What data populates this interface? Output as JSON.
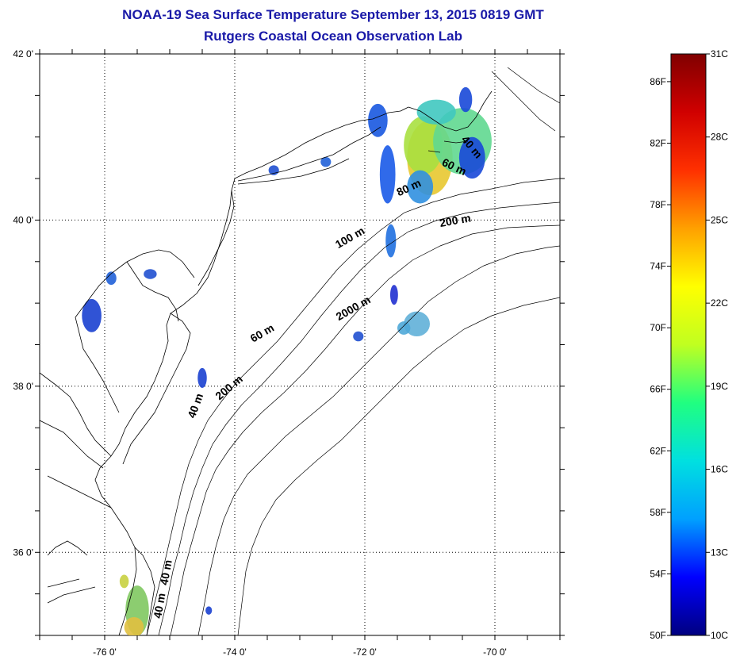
{
  "header": {
    "title": "NOAA-19 Sea Surface Temperature September 13, 2015 0819 GMT",
    "subtitle": "Rutgers Coastal Ocean Observation Lab"
  },
  "map": {
    "lon_range": [
      -77,
      -69
    ],
    "lat_range": [
      35,
      42
    ],
    "x_ticks": [
      {
        "lon": -76,
        "label": "-76 0'"
      },
      {
        "lon": -74,
        "label": "-74 0'"
      },
      {
        "lon": -72,
        "label": "-72 0'"
      },
      {
        "lon": -70,
        "label": "-70 0'"
      }
    ],
    "y_ticks": [
      {
        "lat": 42,
        "label": "42 0'"
      },
      {
        "lat": 40,
        "label": "40 0'"
      },
      {
        "lat": 38,
        "label": "38 0'"
      },
      {
        "lat": 36,
        "label": "36 0'"
      }
    ],
    "gridlines": "dotted",
    "isobath_labels": [
      {
        "text": "40 m",
        "lon": -70.4,
        "lat": 40.85,
        "angle": 50
      },
      {
        "text": "60 m",
        "lon": -70.65,
        "lat": 40.6,
        "angle": 25
      },
      {
        "text": "80 m",
        "lon": -71.3,
        "lat": 40.35,
        "angle": -25
      },
      {
        "text": "200 m",
        "lon": -70.6,
        "lat": 39.95,
        "angle": -10
      },
      {
        "text": "100 m",
        "lon": -72.2,
        "lat": 39.75,
        "angle": -30
      },
      {
        "text": "2000 m",
        "lon": -72.15,
        "lat": 38.9,
        "angle": -30
      },
      {
        "text": "60 m",
        "lon": -73.55,
        "lat": 38.6,
        "angle": -30
      },
      {
        "text": "200 m",
        "lon": -74.05,
        "lat": 37.95,
        "angle": -40
      },
      {
        "text": "40 m",
        "lon": -74.55,
        "lat": 37.75,
        "angle": -70
      },
      {
        "text": "40 m",
        "lon": -75.0,
        "lat": 35.75,
        "angle": -80
      },
      {
        "text": "40 m",
        "lon": -75.1,
        "lat": 35.35,
        "angle": -80
      }
    ],
    "sst_patches": [
      {
        "lon": -71.0,
        "lat": 40.75,
        "rx": 0.35,
        "ry": 0.45,
        "color": "#e8c830"
      },
      {
        "lon": -71.1,
        "lat": 40.9,
        "rx": 0.3,
        "ry": 0.35,
        "color": "#a8e040"
      },
      {
        "lon": -70.5,
        "lat": 40.95,
        "rx": 0.45,
        "ry": 0.4,
        "color": "#60d890"
      },
      {
        "lon": -70.35,
        "lat": 40.75,
        "rx": 0.2,
        "ry": 0.25,
        "color": "#1848d8"
      },
      {
        "lon": -70.9,
        "lat": 41.3,
        "rx": 0.3,
        "ry": 0.15,
        "color": "#40c8c0"
      },
      {
        "lon": -70.45,
        "lat": 41.45,
        "rx": 0.1,
        "ry": 0.15,
        "color": "#1848d8"
      },
      {
        "lon": -71.8,
        "lat": 41.2,
        "rx": 0.15,
        "ry": 0.2,
        "color": "#1858e0"
      },
      {
        "lon": -71.65,
        "lat": 40.55,
        "rx": 0.12,
        "ry": 0.35,
        "color": "#1a5ae8"
      },
      {
        "lon": -71.15,
        "lat": 40.4,
        "rx": 0.2,
        "ry": 0.2,
        "color": "#3090e0"
      },
      {
        "lon": -71.6,
        "lat": 39.75,
        "rx": 0.08,
        "ry": 0.2,
        "color": "#2070e0"
      },
      {
        "lon": -71.55,
        "lat": 39.1,
        "rx": 0.06,
        "ry": 0.12,
        "color": "#2030d0"
      },
      {
        "lon": -71.2,
        "lat": 38.75,
        "rx": 0.2,
        "ry": 0.15,
        "color": "#60b0d8"
      },
      {
        "lon": -71.4,
        "lat": 38.7,
        "rx": 0.1,
        "ry": 0.08,
        "color": "#4fa8d8"
      },
      {
        "lon": -72.1,
        "lat": 38.6,
        "rx": 0.08,
        "ry": 0.06,
        "color": "#2050d0"
      },
      {
        "lon": -76.2,
        "lat": 38.85,
        "rx": 0.15,
        "ry": 0.2,
        "color": "#1a40d0"
      },
      {
        "lon": -75.9,
        "lat": 39.3,
        "rx": 0.08,
        "ry": 0.08,
        "color": "#2060d8"
      },
      {
        "lon": -75.3,
        "lat": 39.35,
        "rx": 0.1,
        "ry": 0.06,
        "color": "#2050d0"
      },
      {
        "lon": -74.5,
        "lat": 38.1,
        "rx": 0.07,
        "ry": 0.12,
        "color": "#1a40d0"
      },
      {
        "lon": -75.5,
        "lat": 35.3,
        "rx": 0.18,
        "ry": 0.3,
        "color": "#80c860"
      },
      {
        "lon": -75.55,
        "lat": 35.1,
        "rx": 0.15,
        "ry": 0.12,
        "color": "#e0c040"
      },
      {
        "lon": -75.7,
        "lat": 35.65,
        "rx": 0.07,
        "ry": 0.08,
        "color": "#c8d040"
      },
      {
        "lon": -74.4,
        "lat": 35.3,
        "rx": 0.05,
        "ry": 0.05,
        "color": "#1a40d0"
      },
      {
        "lon": -73.4,
        "lat": 40.6,
        "rx": 0.08,
        "ry": 0.06,
        "color": "#2050d0"
      },
      {
        "lon": -72.6,
        "lat": 40.7,
        "rx": 0.08,
        "ry": 0.06,
        "color": "#2060d8"
      }
    ]
  },
  "colorbar": {
    "range_c": [
      10,
      31
    ],
    "colors": [
      "#000080",
      "#0000ff",
      "#00a0ff",
      "#00e0e0",
      "#20ff80",
      "#c0ff20",
      "#ffff00",
      "#ffa000",
      "#ff3000",
      "#d00000",
      "#800000"
    ],
    "celsius_labels": [
      "31C",
      "28C",
      "25C",
      "22C",
      "19C",
      "16C",
      "13C",
      "10C"
    ],
    "celsius_values": [
      31,
      28,
      25,
      22,
      19,
      16,
      13,
      10
    ],
    "fahrenheit_labels": [
      "86F",
      "82F",
      "78F",
      "74F",
      "70F",
      "66F",
      "62F",
      "58F",
      "54F",
      "50F"
    ],
    "fahrenheit_values": [
      86,
      82,
      78,
      74,
      70,
      66,
      62,
      58,
      54,
      50
    ]
  }
}
